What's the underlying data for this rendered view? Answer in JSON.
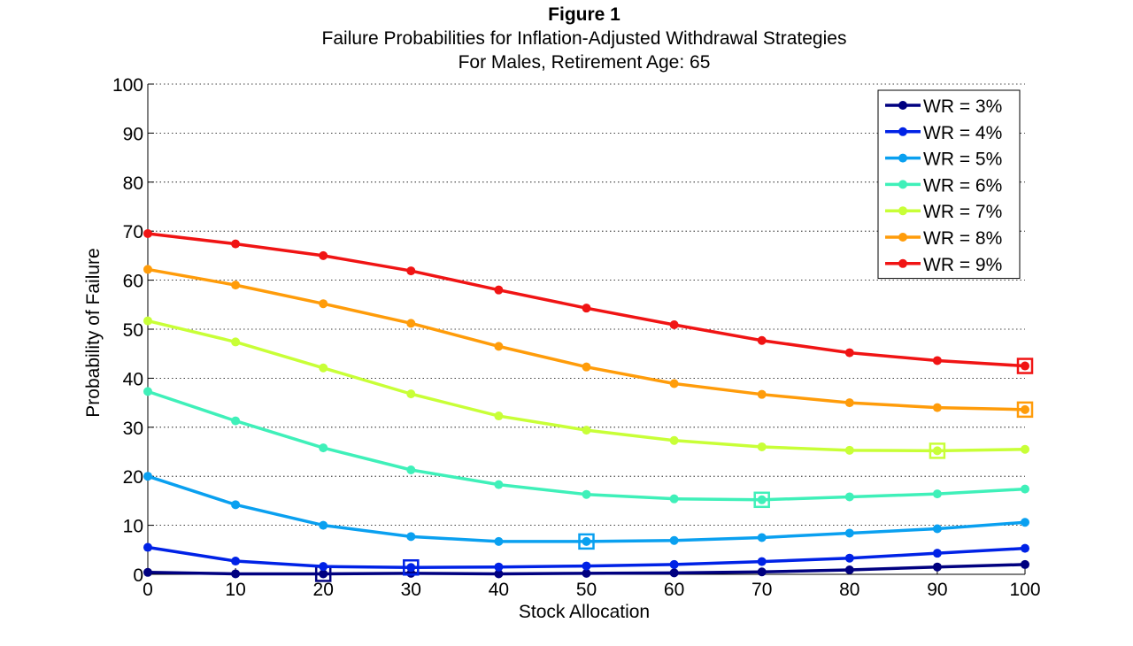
{
  "figure_label": "Figure 1",
  "chart_data": {
    "type": "line",
    "title": "Failure Probabilities for Inflation-Adjusted Withdrawal Strategies",
    "subtitle": "For Males, Retirement Age: 65",
    "xlabel": "Stock Allocation",
    "ylabel": "Probability of Failure",
    "xlim": [
      0,
      100
    ],
    "ylim": [
      0,
      100
    ],
    "xticks": [
      0,
      10,
      20,
      30,
      40,
      50,
      60,
      70,
      80,
      90,
      100
    ],
    "yticks": [
      0,
      10,
      20,
      30,
      40,
      50,
      60,
      70,
      80,
      90,
      100
    ],
    "grid": "horizontal dotted",
    "legend_position": "top-right",
    "x": [
      0,
      10,
      20,
      30,
      40,
      50,
      60,
      70,
      80,
      90,
      100
    ],
    "series": [
      {
        "name": "WR = 3%",
        "color": "#000080",
        "values": [
          0.4,
          0.1,
          0.1,
          0.2,
          0.1,
          0.2,
          0.3,
          0.5,
          0.9,
          1.5,
          2.0
        ],
        "min_marker_x": 20
      },
      {
        "name": "WR = 4%",
        "color": "#0022e6",
        "values": [
          5.5,
          2.7,
          1.6,
          1.4,
          1.5,
          1.7,
          2.0,
          2.6,
          3.3,
          4.3,
          5.3
        ],
        "min_marker_x": 30
      },
      {
        "name": "WR = 5%",
        "color": "#0aa0f0",
        "values": [
          20.0,
          14.2,
          10.0,
          7.7,
          6.7,
          6.7,
          6.9,
          7.5,
          8.4,
          9.3,
          10.6
        ],
        "min_marker_x": 50
      },
      {
        "name": "WR = 6%",
        "color": "#3ff0b9",
        "values": [
          37.3,
          31.3,
          25.8,
          21.3,
          18.3,
          16.3,
          15.4,
          15.2,
          15.8,
          16.4,
          17.4
        ],
        "min_marker_x": 70
      },
      {
        "name": "WR = 7%",
        "color": "#c8ff37",
        "values": [
          51.7,
          47.4,
          42.1,
          36.8,
          32.3,
          29.4,
          27.3,
          26.0,
          25.3,
          25.2,
          25.5
        ],
        "min_marker_x": 90
      },
      {
        "name": "WR = 8%",
        "color": "#ff9c0a",
        "values": [
          62.2,
          59.0,
          55.2,
          51.2,
          46.5,
          42.3,
          38.9,
          36.7,
          35.0,
          34.0,
          33.6
        ],
        "min_marker_x": 100
      },
      {
        "name": "WR = 9%",
        "color": "#f01414",
        "values": [
          69.5,
          67.4,
          65.0,
          61.9,
          58.0,
          54.3,
          50.9,
          47.7,
          45.2,
          43.6,
          42.5
        ],
        "min_marker_x": 100
      }
    ]
  }
}
